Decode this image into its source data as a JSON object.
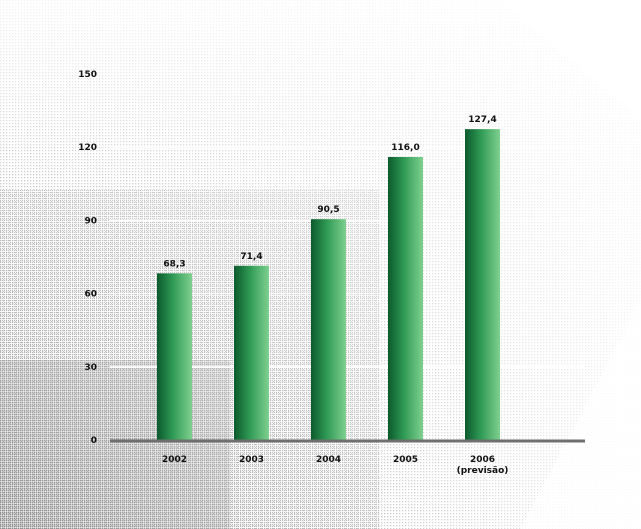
{
  "chart_data": {
    "type": "bar",
    "categories": [
      "2002",
      "2003",
      "2004",
      "2005",
      "2006 (previsão)"
    ],
    "category_lines": [
      [
        "2002"
      ],
      [
        "2003"
      ],
      [
        "2004"
      ],
      [
        "2005"
      ],
      [
        "2006",
        "(previsão)"
      ]
    ],
    "values": [
      68.3,
      71.4,
      90.5,
      116.0,
      127.4
    ],
    "data_labels": [
      "68,3",
      "71,4",
      "90,5",
      "116,0",
      "127,4"
    ],
    "y_ticks": [
      0,
      30,
      60,
      90,
      120,
      150
    ],
    "ylim": [
      0,
      150
    ],
    "grid": true,
    "title": "",
    "xlabel": "",
    "ylabel": "",
    "colors": {
      "bar_dark": "#0c5a2c",
      "bar_mid": "#2f9a55",
      "bar_light": "#7fd08e",
      "axis": "#6f6f6f",
      "grid": "#ffffff"
    }
  }
}
